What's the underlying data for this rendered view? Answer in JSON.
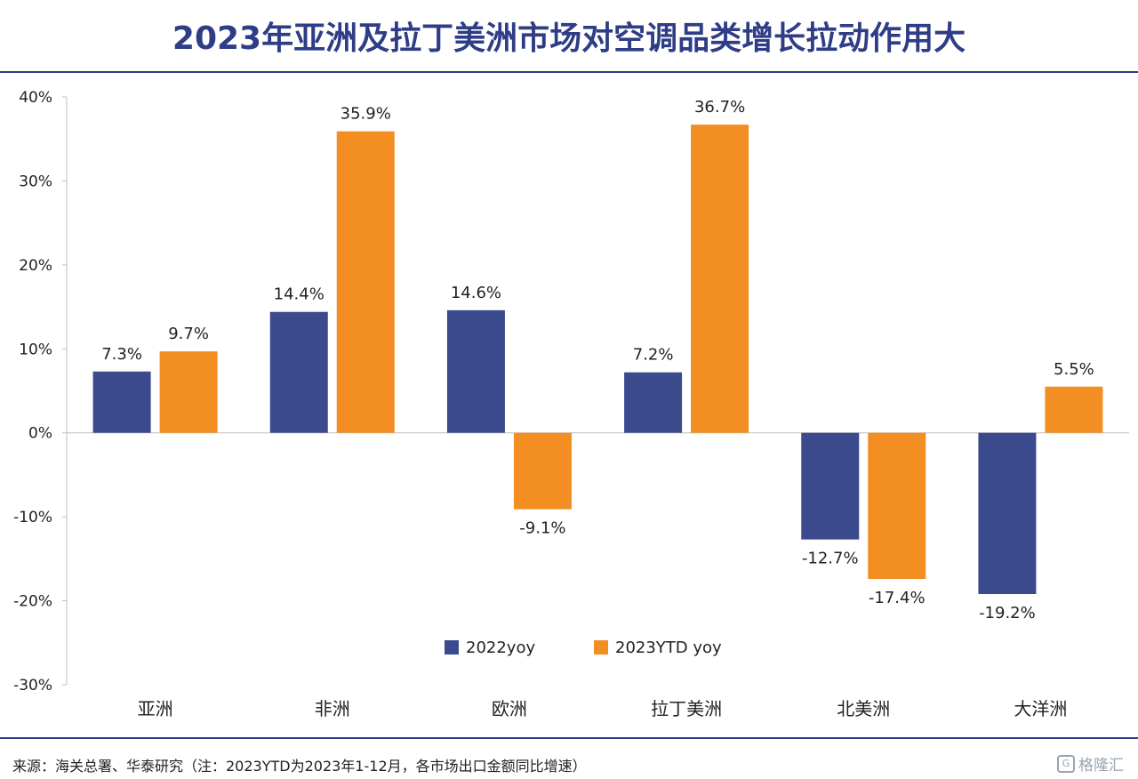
{
  "title": "2023年亚洲及拉丁美洲市场对空调品类增长拉动作用大",
  "source": "来源：海关总署、华泰研究（注：2023YTD为2023年1-12月，各市场出口金额同比增速）",
  "watermark": "格隆汇",
  "colors": {
    "series1": "#3b4a8c",
    "series2": "#f28e22",
    "title": "#2e3d86"
  },
  "chart_data": {
    "type": "bar",
    "categories": [
      "亚洲",
      "非洲",
      "欧洲",
      "拉丁美洲",
      "北美洲",
      "大洋洲"
    ],
    "series": [
      {
        "name": "2022yoy",
        "values": [
          7.3,
          14.4,
          14.6,
          7.2,
          -12.7,
          -19.2
        ],
        "labels": [
          "7.3%",
          "14.4%",
          "14.6%",
          "7.2%",
          "-12.7%",
          "-19.2%"
        ]
      },
      {
        "name": "2023YTD yoy",
        "values": [
          9.7,
          35.9,
          -9.1,
          36.7,
          -17.4,
          5.5
        ],
        "labels": [
          "9.7%",
          "35.9%",
          "-9.1%",
          "36.7%",
          "-17.4%",
          "5.5%"
        ]
      }
    ],
    "y_ticks": [
      40,
      30,
      20,
      10,
      0,
      -10,
      -20,
      -30
    ],
    "y_tick_labels": [
      "40%",
      "30%",
      "20%",
      "10%",
      "0%",
      "-10%",
      "-20%",
      "-30%"
    ],
    "ylim": [
      -30,
      40
    ],
    "legend_position": "bottom-center",
    "grid": false
  }
}
